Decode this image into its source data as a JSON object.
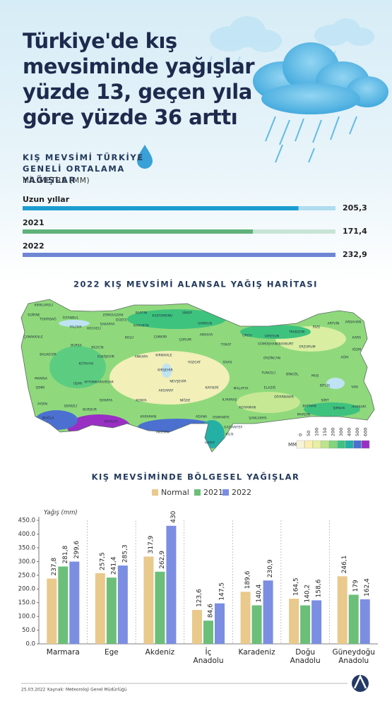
{
  "header": {
    "title": "Türkiye'de kış mevsiminde yağışlar yüzde 13, geçen yıla göre yüzde 36 arttı"
  },
  "chart_data": [
    {
      "type": "hbar",
      "title": "KIŞ MEVSİMİ TÜRKİYE GENELİ ORTALAMA YAĞIŞLAR",
      "subtitle": "MİLİMETRE (MM)",
      "categories": [
        "Uzun yıllar",
        "2021",
        "2022"
      ],
      "values": [
        205.3,
        171.4,
        232.9
      ],
      "value_labels": [
        "205,3",
        "171,4",
        "232,9"
      ],
      "colors": [
        "#1c9dcf",
        "#5fb27a",
        "#6f86d4"
      ],
      "xlim": [
        0,
        232.9
      ]
    },
    {
      "type": "map",
      "title": "2022 KIŞ MEVSİMİ ALANSAL YAĞIŞ HARİTASI",
      "labels": [
        "KIRKLARELİ",
        "EDİRNE",
        "TEKİRDAĞ",
        "İSTANBUL",
        "KOCAELİ",
        "SAKARYA",
        "DÜZCE",
        "ZONGULDAK",
        "BARTIN",
        "KASTAMONU",
        "SİNOP",
        "SAMSUN",
        "ORDU",
        "GİRESUN",
        "TRABZON",
        "RİZE",
        "ARTVİN",
        "ARDAHAN",
        "KARS",
        "IĞDIR",
        "AĞRI",
        "ERZURUM",
        "BAYBURT",
        "GÜMÜŞHANE",
        "ÇANAKKALE",
        "BALIKESİR",
        "BURSA",
        "BİLECİK",
        "BOLU",
        "ÇANKIRI",
        "KARABÜK",
        "ÇORUM",
        "AMASYA",
        "TOKAT",
        "ERZİNCAN",
        "ESKİŞEHİR",
        "ANKARA",
        "KIRIKKALE",
        "YOZGAT",
        "SİVAS",
        "KÜTAHYA",
        "MANİSA",
        "İZMİR",
        "UŞAK",
        "AFYONKARAHİSAR",
        "KIRŞEHİR",
        "NEVŞEHİR",
        "KAYSERİ",
        "MALATYA",
        "ELAZIĞ",
        "TUNCELİ",
        "BİNGÖL",
        "MUŞ",
        "VAN",
        "BİTLİS",
        "AYDIN",
        "DENİZLİ",
        "ISPARTA",
        "KONYA",
        "AKSARAY",
        "NİĞDE",
        "ADANA",
        "OSMANİYE",
        "K.MARAŞ",
        "ADIYAMAN",
        "DİYARBAKIR",
        "BATMAN",
        "SİİRT",
        "ŞIRNAK",
        "HAKKARİ",
        "MARDİN",
        "ŞANLIURFA",
        "GAZİANTEP",
        "KİLİS",
        "HATAY",
        "MUĞLA",
        "BURDUR",
        "ANTALYA",
        "KARAMAN",
        "MERSİN",
        "YALOVA"
      ],
      "legend_title": "MM",
      "legend_ticks": [
        0,
        50,
        100,
        150,
        200,
        300,
        400,
        500,
        600
      ],
      "legend_colors": [
        "#f8f4dc",
        "#fbeeb0",
        "#e6f0a2",
        "#bde48c",
        "#82d57a",
        "#3ec37f",
        "#25b0a6",
        "#4b70d0",
        "#9a2fc4"
      ]
    },
    {
      "type": "bar",
      "title": "KIŞ MEVSİMİNDE BÖLGESEL YAĞIŞLAR",
      "y_label": "Yağış (mm)",
      "categories": [
        "Marmara",
        "Ege",
        "Akdeniz",
        "İç Anadolu",
        "Karadeniz",
        "Doğu Anadolu",
        "Güneydoğu Anadolu"
      ],
      "series": [
        {
          "name": "Normal",
          "color": "#e9c98c",
          "values": [
            237.8,
            257.5,
            317.9,
            123.6,
            189.6,
            164.5,
            246.1
          ],
          "value_labels": [
            "237,8",
            "257,5",
            "317,9",
            "123,6",
            "189,6",
            "164,5",
            "246,1"
          ]
        },
        {
          "name": "2021",
          "color": "#6cbf78",
          "values": [
            281.8,
            241.4,
            262.9,
            84.6,
            140.4,
            140.2,
            179
          ],
          "value_labels": [
            "281,8",
            "241,4",
            "262,9",
            "84,6",
            "140,4",
            "140,2",
            "179"
          ]
        },
        {
          "name": "2022",
          "color": "#7b8ee2",
          "values": [
            299.6,
            285.3,
            430,
            147.5,
            230.9,
            158.6,
            162.4
          ],
          "value_labels": [
            "299,6",
            "285,3",
            "430",
            "147,5",
            "230,9",
            "158,6",
            "162,4"
          ]
        }
      ],
      "ylim": [
        0,
        450
      ],
      "yticks": [
        {
          "value": 0,
          "label": "0.0"
        },
        {
          "value": 50,
          "label": "50.0"
        },
        {
          "value": 100,
          "label": "100.0"
        },
        {
          "value": 150,
          "label": "150.0"
        },
        {
          "value": 200,
          "label": "200.0"
        },
        {
          "value": 250,
          "label": "250.0"
        },
        {
          "value": 300,
          "label": "300.0"
        },
        {
          "value": 350,
          "label": "350.0"
        },
        {
          "value": 400,
          "label": "400.0"
        },
        {
          "value": 450,
          "label": "450.0"
        }
      ]
    }
  ],
  "footer": {
    "date": "25.03.2022",
    "source": "Kaynak: Meteoroloji Genel Müdürlüğü"
  }
}
